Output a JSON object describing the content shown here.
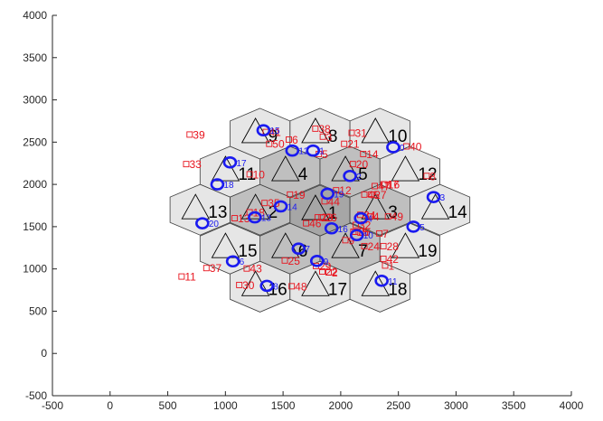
{
  "chart_data": {
    "type": "scatter",
    "title": "",
    "xlabel": "",
    "ylabel": "",
    "xlim": [
      -500,
      4000
    ],
    "ylim": [
      -500,
      4000
    ],
    "xticks": [
      -500,
      0,
      500,
      1000,
      1500,
      2000,
      2500,
      3000,
      3500,
      4000
    ],
    "yticks": [
      -500,
      0,
      500,
      1000,
      1500,
      2000,
      2500,
      3000,
      3500,
      4000
    ],
    "grid": false,
    "hex_side": 300,
    "colors": {
      "center_cell": "#a6a6a6",
      "first_ring": "#bfbfbf",
      "second_ring": "#e6e6e6",
      "edge": "#404040",
      "user_marker": "#e8141e",
      "station_marker": "#1a1af0"
    },
    "cells": [
      {
        "id": "1",
        "x": 1820,
        "y": 1690,
        "ring": 0
      },
      {
        "id": "2",
        "x": 1300,
        "y": 1700,
        "ring": 1
      },
      {
        "id": "3",
        "x": 2340,
        "y": 1700,
        "ring": 1
      },
      {
        "id": "4",
        "x": 1560,
        "y": 2150,
        "ring": 1
      },
      {
        "id": "5",
        "x": 2080,
        "y": 2150,
        "ring": 1
      },
      {
        "id": "6",
        "x": 1560,
        "y": 1240,
        "ring": 1
      },
      {
        "id": "7",
        "x": 2080,
        "y": 1240,
        "ring": 1
      },
      {
        "id": "8",
        "x": 1820,
        "y": 2600,
        "ring": 2
      },
      {
        "id": "9",
        "x": 1300,
        "y": 2600,
        "ring": 2
      },
      {
        "id": "10",
        "x": 2340,
        "y": 2600,
        "ring": 2
      },
      {
        "id": "11",
        "x": 1040,
        "y": 2150,
        "ring": 2
      },
      {
        "id": "12",
        "x": 2600,
        "y": 2150,
        "ring": 2
      },
      {
        "id": "13",
        "x": 780,
        "y": 1700,
        "ring": 2
      },
      {
        "id": "14",
        "x": 2860,
        "y": 1700,
        "ring": 2
      },
      {
        "id": "15",
        "x": 1040,
        "y": 1240,
        "ring": 2
      },
      {
        "id": "16",
        "x": 1300,
        "y": 790,
        "ring": 2
      },
      {
        "id": "17",
        "x": 1820,
        "y": 790,
        "ring": 2
      },
      {
        "id": "18",
        "x": 2340,
        "y": 790,
        "ring": 2
      },
      {
        "id": "19",
        "x": 2600,
        "y": 1240,
        "ring": 2
      }
    ],
    "users": [
      {
        "id": "1",
        "x": 2385,
        "y": 1040
      },
      {
        "id": "2",
        "x": 1895,
        "y": 960
      },
      {
        "id": "3",
        "x": 1845,
        "y": 2565
      },
      {
        "id": "4",
        "x": 2255,
        "y": 1620
      },
      {
        "id": "5",
        "x": 1810,
        "y": 2360
      },
      {
        "id": "6",
        "x": 1550,
        "y": 2530
      },
      {
        "id": "7",
        "x": 2335,
        "y": 1420
      },
      {
        "id": "8",
        "x": 2745,
        "y": 2100
      },
      {
        "id": "9",
        "x": 2040,
        "y": 1340
      },
      {
        "id": "10",
        "x": 1210,
        "y": 2120
      },
      {
        "id": "11",
        "x": 620,
        "y": 910
      },
      {
        "id": "12",
        "x": 1960,
        "y": 1930
      },
      {
        "id": "13",
        "x": 1080,
        "y": 1600
      },
      {
        "id": "14",
        "x": 2195,
        "y": 2360
      },
      {
        "id": "15",
        "x": 2110,
        "y": 1440
      },
      {
        "id": "16",
        "x": 2380,
        "y": 2000
      },
      {
        "id": "17",
        "x": 2370,
        "y": 2000
      },
      {
        "id": "18",
        "x": 1210,
        "y": 1670
      },
      {
        "id": "19",
        "x": 1560,
        "y": 1880
      },
      {
        "id": "20",
        "x": 2105,
        "y": 2240
      },
      {
        "id": "21",
        "x": 2030,
        "y": 2480
      },
      {
        "id": "22",
        "x": 1840,
        "y": 970
      },
      {
        "id": "23",
        "x": 1800,
        "y": 1610
      },
      {
        "id": "24",
        "x": 2205,
        "y": 1270
      },
      {
        "id": "25",
        "x": 1515,
        "y": 1100
      },
      {
        "id": "26",
        "x": 1835,
        "y": 1610
      },
      {
        "id": "27",
        "x": 2265,
        "y": 1880
      },
      {
        "id": "28",
        "x": 2370,
        "y": 1270
      },
      {
        "id": "29",
        "x": 1785,
        "y": 1035
      },
      {
        "id": "30",
        "x": 1120,
        "y": 810
      },
      {
        "id": "31",
        "x": 2095,
        "y": 2610
      },
      {
        "id": "32",
        "x": 2130,
        "y": 1520
      },
      {
        "id": "33",
        "x": 660,
        "y": 2240
      },
      {
        "id": "34",
        "x": 2170,
        "y": 1640
      },
      {
        "id": "35",
        "x": 1340,
        "y": 1780
      },
      {
        "id": "36",
        "x": 2125,
        "y": 1440
      },
      {
        "id": "37",
        "x": 835,
        "y": 1010
      },
      {
        "id": "38",
        "x": 1780,
        "y": 2660
      },
      {
        "id": "39",
        "x": 690,
        "y": 2590
      },
      {
        "id": "40",
        "x": 2570,
        "y": 2450
      },
      {
        "id": "41",
        "x": 1350,
        "y": 2620
      },
      {
        "id": "42",
        "x": 2370,
        "y": 1120
      },
      {
        "id": "43",
        "x": 1185,
        "y": 1005
      },
      {
        "id": "44",
        "x": 1860,
        "y": 1800
      },
      {
        "id": "45",
        "x": 2205,
        "y": 1880
      },
      {
        "id": "46",
        "x": 1700,
        "y": 1540
      },
      {
        "id": "47",
        "x": 2295,
        "y": 1980
      },
      {
        "id": "48",
        "x": 1575,
        "y": 795
      },
      {
        "id": "49",
        "x": 2410,
        "y": 1620
      },
      {
        "id": "50",
        "x": 1380,
        "y": 2480
      }
    ],
    "stations": [
      {
        "id": "0",
        "x": 2455,
        "y": 2440
      },
      {
        "id": "1",
        "x": 1760,
        "y": 2400
      },
      {
        "id": "2",
        "x": 2080,
        "y": 2100
      },
      {
        "id": "3",
        "x": 2805,
        "y": 1850
      },
      {
        "id": "4",
        "x": 2175,
        "y": 1600
      },
      {
        "id": "5",
        "x": 2630,
        "y": 1500
      },
      {
        "id": "6",
        "x": 1065,
        "y": 1090
      },
      {
        "id": "7",
        "x": 1635,
        "y": 1240
      },
      {
        "id": "8",
        "x": 1360,
        "y": 800
      },
      {
        "id": "9",
        "x": 1795,
        "y": 1095
      },
      {
        "id": "10",
        "x": 2140,
        "y": 1400
      },
      {
        "id": "11",
        "x": 2355,
        "y": 860
      },
      {
        "id": "12",
        "x": 1580,
        "y": 2400
      },
      {
        "id": "13",
        "x": 1255,
        "y": 1610
      },
      {
        "id": "14",
        "x": 1480,
        "y": 1740
      },
      {
        "id": "15",
        "x": 1330,
        "y": 2640
      },
      {
        "id": "16",
        "x": 1920,
        "y": 1480
      },
      {
        "id": "17",
        "x": 1040,
        "y": 2260
      },
      {
        "id": "18",
        "x": 930,
        "y": 2000
      },
      {
        "id": "19",
        "x": 1885,
        "y": 1890
      },
      {
        "id": "20",
        "x": 800,
        "y": 1540
      }
    ]
  }
}
